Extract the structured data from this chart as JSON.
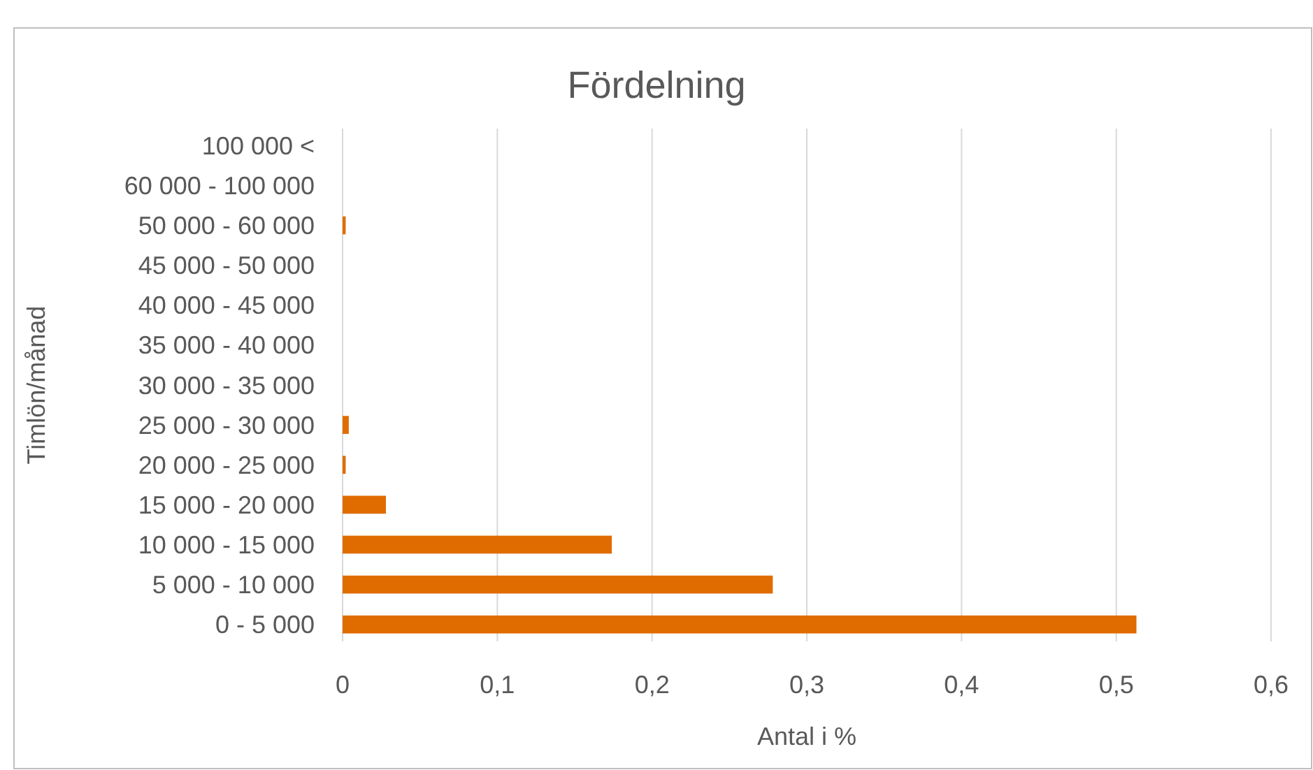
{
  "chart_data": {
    "type": "bar",
    "orientation": "horizontal",
    "title": "Fördelning",
    "xlabel": "Antal i %",
    "ylabel": "Timlön/månad",
    "categories": [
      "100 000 <",
      "60 000 - 100 000",
      "50 000 - 60 000",
      "45 000 - 50 000",
      "40 000 - 45 000",
      "35 000 - 40 000",
      "30 000 - 35 000",
      "25 000 - 30 000",
      "20 000 - 25 000",
      "15 000 - 20 000",
      "10 000 - 15 000",
      "5 000 - 10 000",
      "0 - 5 000"
    ],
    "values": [
      0,
      0,
      0.002,
      0,
      0,
      0,
      0,
      0.004,
      0.002,
      0.028,
      0.174,
      0.278,
      0.513
    ],
    "color": "#e06c00",
    "xlim": [
      0,
      0.6
    ],
    "xticks": [
      0,
      {
        "value": 0.1,
        "label": "0,1"
      },
      {
        "value": 0.2,
        "label": "0,2"
      },
      {
        "value": 0.3,
        "label": "0,3"
      },
      {
        "value": 0.4,
        "label": "0,4"
      },
      {
        "value": 0.5,
        "label": "0,5"
      },
      {
        "value": 0.6,
        "label": "0,6"
      }
    ],
    "grid": "x"
  }
}
